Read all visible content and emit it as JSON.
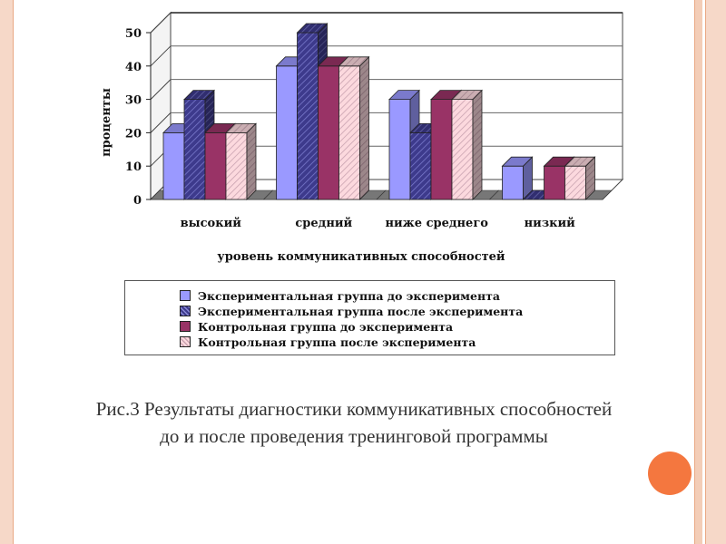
{
  "chart_data": {
    "type": "bar",
    "categories": [
      "высокий",
      "средний",
      "ниже среднего",
      "низкий"
    ],
    "series": [
      {
        "name": "Экспериментальная группа до эксперимента",
        "values": [
          20,
          40,
          30,
          10
        ],
        "color": "#9a99ff",
        "pattern": "solid"
      },
      {
        "name": "Экспериментальная группа после эксперимента",
        "values": [
          30,
          50,
          20,
          0
        ],
        "color": "#3d3a8c",
        "pattern": "hatch"
      },
      {
        "name": "Контрольная группа до эксперимента",
        "values": [
          20,
          40,
          30,
          10
        ],
        "color": "#993366",
        "pattern": "solid"
      },
      {
        "name": "Контрольная группа после эксперимента",
        "values": [
          20,
          40,
          30,
          10
        ],
        "color": "#fcd9de",
        "pattern": "hatch"
      }
    ],
    "xlabel": "уровень коммуникативных способностей",
    "ylabel": "проценты",
    "ylim": [
      0,
      50
    ],
    "yticks": [
      "0",
      "10",
      "20",
      "30",
      "40",
      "50"
    ],
    "style": "3d-clustered",
    "grid": true,
    "legend": "bottom"
  },
  "caption": {
    "line1": "Рис.3 Результаты диагностики коммуникативных способностей",
    "line2": "до и после проведения тренинговой программы"
  },
  "colors": {
    "frame": "#f6d8c8",
    "frame_line": "#e9a884",
    "accent_circle": "#f4773f"
  }
}
